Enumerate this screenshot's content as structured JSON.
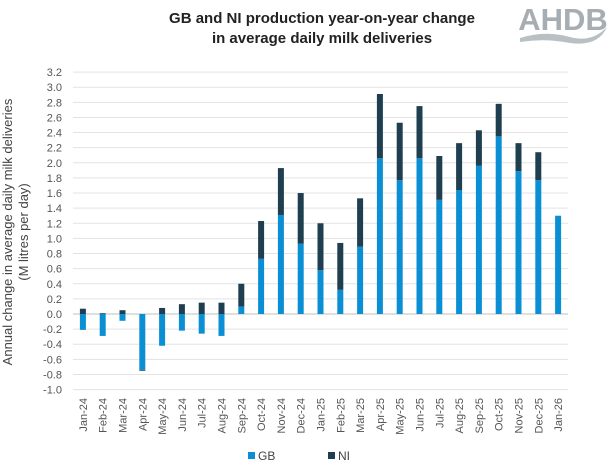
{
  "logo": {
    "text": "AHDB",
    "color": "#a7aeb3"
  },
  "chart_data": {
    "type": "bar",
    "stacked": true,
    "title": "GB and NI production year-on-year change\nin average daily milk deliveries",
    "title_lines": [
      "GB and NI production year-on-year change",
      "in average daily milk deliveries"
    ],
    "xlabel": "",
    "ylabel": "Annual change in average daily milk deliveries",
    "ylabel2": "(M litres per day)",
    "ylim": [
      -1.0,
      3.2
    ],
    "ytick_step": 0.2,
    "grid": true,
    "legend_position": "bottom",
    "categories": [
      "Jan-24",
      "Feb-24",
      "Mar-24",
      "Apr-24",
      "May-24",
      "Jun-24",
      "Jul-24",
      "Aug-24",
      "Sep-24",
      "Oct-24",
      "Nov-24",
      "Dec-24",
      "Jan-25",
      "Feb-25",
      "Mar-25",
      "Apr-25",
      "May-25",
      "Jun-25",
      "Jul-25",
      "Aug-25",
      "Sep-25",
      "Oct-25",
      "Nov-25",
      "Dec-25",
      "Jan-26"
    ],
    "series": [
      {
        "name": "GB",
        "color": "#0a8fd4",
        "values": [
          -0.21,
          -0.29,
          -0.09,
          -0.74,
          -0.42,
          -0.22,
          -0.26,
          -0.29,
          0.1,
          0.73,
          1.31,
          0.93,
          0.58,
          0.32,
          0.89,
          2.06,
          1.77,
          2.06,
          1.51,
          1.64,
          1.96,
          2.35,
          1.89,
          1.77,
          1.3
        ]
      },
      {
        "name": "NI",
        "color": "#1f3f50",
        "values": [
          0.07,
          0.01,
          0.05,
          -0.01,
          0.08,
          0.13,
          0.15,
          0.15,
          0.3,
          0.5,
          0.62,
          0.67,
          0.62,
          0.62,
          0.64,
          0.85,
          0.76,
          0.69,
          0.58,
          0.62,
          0.47,
          0.43,
          0.37,
          0.37,
          0
        ]
      }
    ]
  }
}
